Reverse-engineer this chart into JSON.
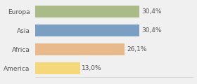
{
  "categories": [
    "Europa",
    "Asia",
    "Africa",
    "America"
  ],
  "values": [
    30.4,
    30.4,
    26.1,
    13.0
  ],
  "labels": [
    "30,4%",
    "30,4%",
    "26,1%",
    "13,0%"
  ],
  "bar_colors": [
    "#aabb88",
    "#7a9fc2",
    "#e8b98a",
    "#f5d87a"
  ],
  "background_color": "#f0f0f0",
  "xlim": [
    0,
    46
  ],
  "figsize": [
    2.8,
    1.2
  ],
  "dpi": 100,
  "bar_height": 0.62,
  "label_fontsize": 6.5,
  "tick_fontsize": 6.5
}
